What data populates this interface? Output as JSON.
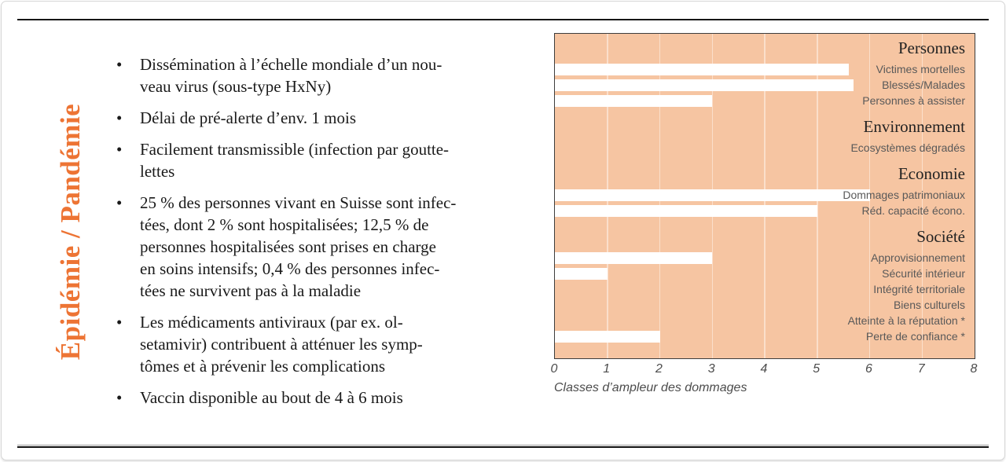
{
  "page": {
    "kind": "report-slide",
    "accent_color": "#ed7434"
  },
  "title": {
    "text": "Épidémie / Pandémie"
  },
  "list": {
    "bullet_char": "•",
    "bullets": [
      "Dissémination à l’échelle mondiale d’un nou-\nveau virus (sous-type HxNy)",
      "Délai de pré-alerte d’env. 1 mois",
      "Facilement transmissible (infection par goutte-\nlettes",
      "25 % des personnes vivant en Suisse sont infec-\ntées, dont 2 % sont hospitalisées; 12,5 % de\npersonnes hospitalisées sont prises en charge\nen soins intensifs; 0,4 % des personnes infec-\ntées ne survivent pas à la maladie",
      "Les médicaments antiviraux (par ex. ol-\nsetamivir) contribuent à atténuer les symp-\ntômes et à prévenir les complications",
      "Vaccin disponible au bout de 4 à 6 mois"
    ]
  },
  "chart_data": {
    "type": "bar",
    "orientation": "horizontal",
    "xlabel": "Classes d’ampleur des dommages",
    "xlim": [
      0,
      8
    ],
    "x_ticks": [
      "0",
      "1",
      "2",
      "3",
      "4",
      "5",
      "6",
      "7",
      "8"
    ],
    "grid": true,
    "legend": false,
    "groups": [
      {
        "header": "Personnes",
        "items": [
          {
            "label": "Victimes mortelles",
            "value": 5.6
          },
          {
            "label": "Blessés/Malades",
            "value": 5.7
          },
          {
            "label": "Personnes à assister",
            "value": 3
          }
        ]
      },
      {
        "header": "Environnement",
        "items": [
          {
            "label": "Ecosystèmes dégradés",
            "value": 0
          }
        ]
      },
      {
        "header": "Economie",
        "items": [
          {
            "label": "Dommages patrimoniaux",
            "value": 6
          },
          {
            "label": "Réd. capacité écono.",
            "value": 5
          }
        ]
      },
      {
        "header": "Société",
        "items": [
          {
            "label": "Approvisionnement",
            "value": 3
          },
          {
            "label": "Sécurité intérieur",
            "value": 1
          },
          {
            "label": "Intégrité territoriale",
            "value": 0
          },
          {
            "label": "Biens culturels",
            "value": 0
          },
          {
            "label": "Atteinte à la réputation *",
            "value": 0
          },
          {
            "label": "Perte de confiance *",
            "value": 2
          }
        ]
      }
    ],
    "colors": {
      "plot_bg": "#f6c5a2",
      "bar": "#ffffff",
      "grid": "#fbdfcb",
      "border": "#3d3d3d",
      "header_text": "#232323",
      "label_text": "#595959",
      "tick_text": "#4c4c4c"
    }
  }
}
